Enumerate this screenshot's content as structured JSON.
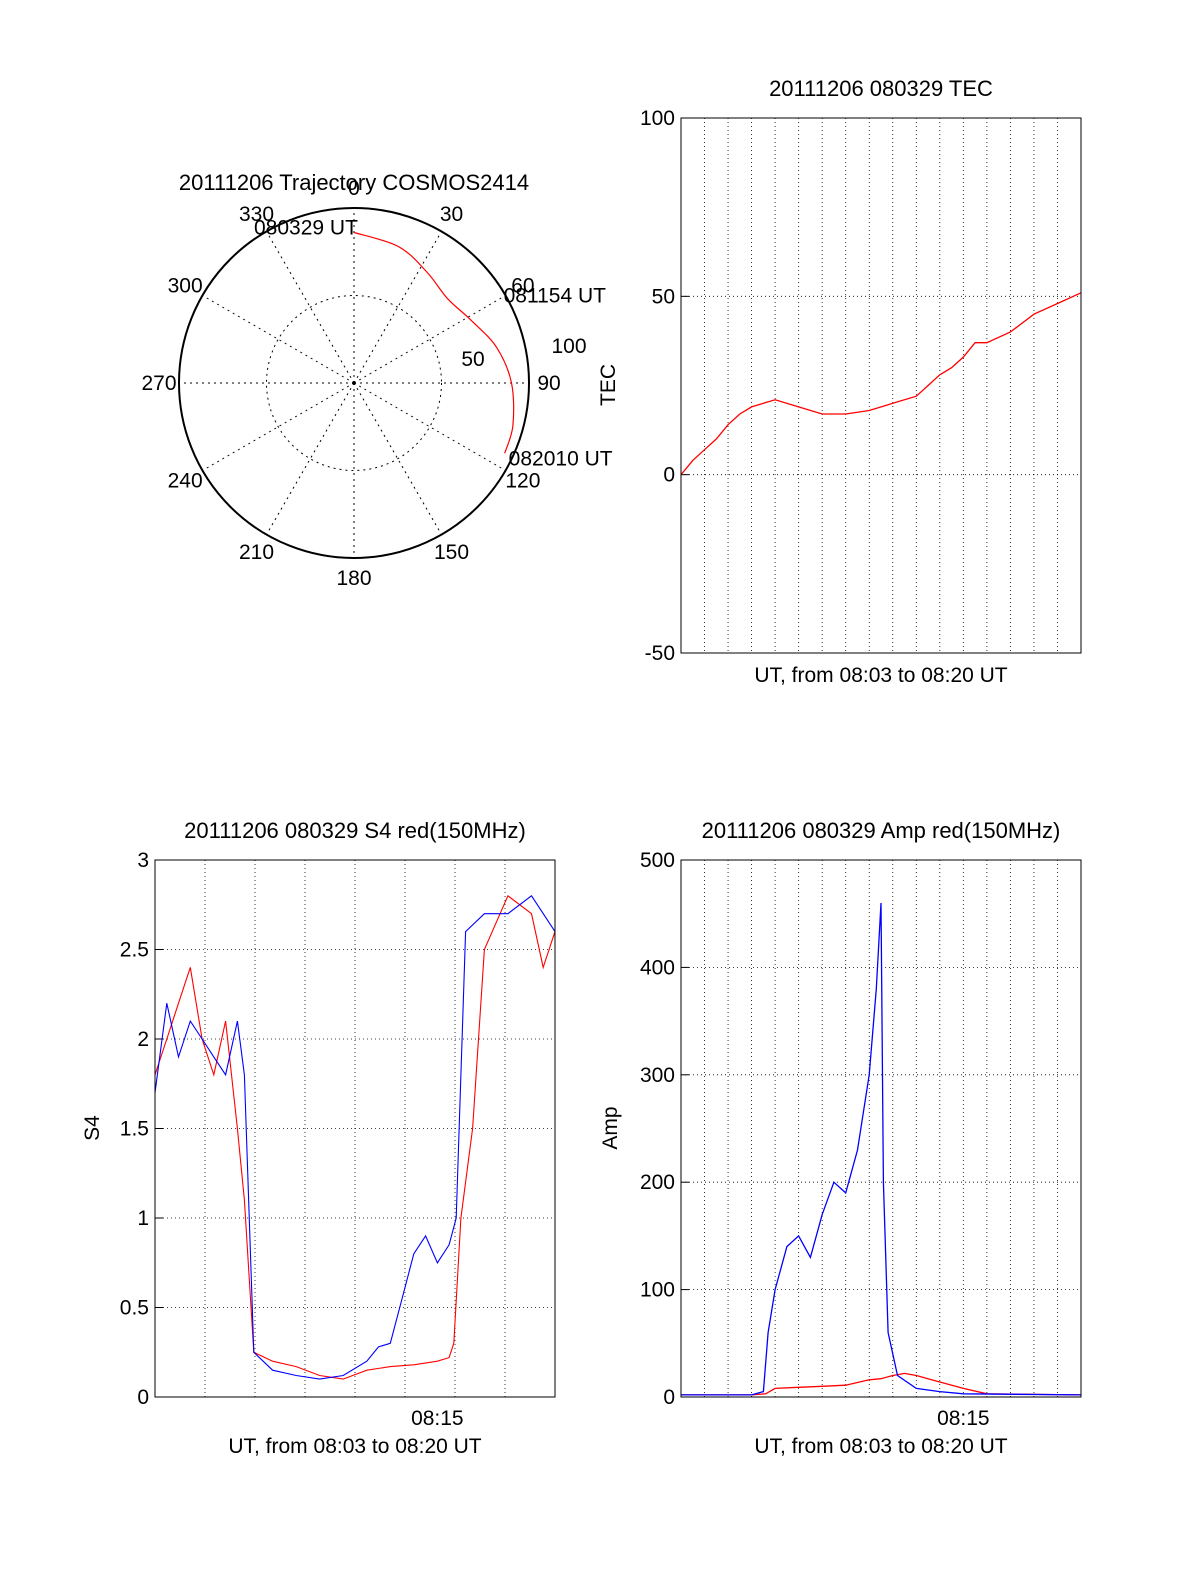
{
  "chart_data": [
    {
      "type": "polar-trajectory",
      "title": "20111206 Trajectory COSMOS2414",
      "azimuth_labels": [
        "0",
        "30",
        "60",
        "90",
        "120",
        "150",
        "180",
        "210",
        "240",
        "270",
        "300",
        "330"
      ],
      "azimuths": [
        0,
        30,
        60,
        90,
        120,
        150,
        180,
        210,
        240,
        270,
        300,
        330
      ],
      "radial_labels": [
        "50",
        "100"
      ],
      "radial_values": [
        50,
        100
      ],
      "r_max": 100,
      "trajectory_color": "#ff0000",
      "trajectory": [
        {
          "azimuth": 0,
          "elevation": 14
        },
        {
          "azimuth": 18,
          "elevation": 18
        },
        {
          "azimuth": 33,
          "elevation": 24
        },
        {
          "azimuth": 48,
          "elevation": 28
        },
        {
          "azimuth": 62,
          "elevation": 24
        },
        {
          "azimuth": 76,
          "elevation": 16
        },
        {
          "azimuth": 90,
          "elevation": 10
        },
        {
          "azimuth": 105,
          "elevation": 6
        },
        {
          "azimuth": 115,
          "elevation": 5
        }
      ],
      "time_labels": [
        {
          "text": "080329 UT",
          "azimuth": 0,
          "elevation": 14
        },
        {
          "text": "081154 UT",
          "azimuth": 48,
          "elevation": 28
        },
        {
          "text": "082010 UT",
          "azimuth": 115,
          "elevation": 5
        }
      ]
    },
    {
      "type": "line",
      "title": "20111206 080329 TEC",
      "xlabel": "UT, from 08:03 to 08:20 UT",
      "ylabel": "TEC",
      "ylim": [
        -50,
        100
      ],
      "yticks": [
        "-50",
        "0",
        "50",
        "100"
      ],
      "xrange_minutes": [
        0,
        17
      ],
      "grid": true,
      "series": [
        {
          "color": "#ff0000",
          "x": [
            0,
            0.5,
            1,
            1.5,
            2,
            2.5,
            3,
            3.5,
            4,
            5,
            6,
            7,
            8,
            9,
            10,
            10.5,
            11,
            11.5,
            12,
            12.5,
            13,
            14,
            15,
            16,
            17
          ],
          "y": [
            0,
            4,
            7,
            10,
            14,
            17,
            19,
            20,
            21,
            19,
            17,
            17,
            18,
            20,
            22,
            25,
            28,
            30,
            33,
            37,
            37,
            40,
            45,
            48,
            51
          ]
        }
      ]
    },
    {
      "type": "line",
      "title": "20111206 080329 S4 red(150MHz)",
      "xlabel": "UT, from 08:03 to 08:20 UT",
      "ylabel": "S4",
      "ylim": [
        0,
        3
      ],
      "yticks": [
        "0",
        "0.5",
        "1",
        "1.5",
        "2",
        "2.5",
        "3"
      ],
      "xtick_labels": [
        {
          "label": "08:15",
          "minute": 12
        }
      ],
      "xrange_minutes": [
        0,
        17
      ],
      "grid": true,
      "series": [
        {
          "color": "#ff0000",
          "x": [
            0,
            0.5,
            1,
            1.5,
            2,
            2.5,
            3,
            3.5,
            3.8,
            4.2,
            5,
            6,
            7,
            8,
            9,
            10,
            11,
            12,
            12.5,
            12.7,
            13,
            13.5,
            14,
            15,
            16,
            16.5,
            17
          ],
          "y": [
            1.8,
            2.0,
            2.2,
            2.4,
            2.0,
            1.8,
            2.1,
            1.5,
            1.1,
            0.25,
            0.2,
            0.17,
            0.12,
            0.1,
            0.15,
            0.17,
            0.18,
            0.2,
            0.22,
            0.3,
            1.0,
            1.5,
            2.5,
            2.8,
            2.7,
            2.4,
            2.6
          ]
        },
        {
          "color": "#0000ff",
          "x": [
            0,
            0.5,
            1,
            1.5,
            2,
            2.5,
            3,
            3.5,
            3.8,
            4.2,
            5,
            6,
            7,
            8,
            9,
            9.5,
            10,
            10.5,
            11,
            11.5,
            12,
            12.5,
            12.8,
            13.2,
            14,
            15,
            16,
            17
          ],
          "y": [
            1.7,
            2.2,
            1.9,
            2.1,
            2.0,
            1.9,
            1.8,
            2.1,
            1.8,
            0.25,
            0.15,
            0.12,
            0.1,
            0.12,
            0.2,
            0.28,
            0.3,
            0.55,
            0.8,
            0.9,
            0.75,
            0.85,
            1.0,
            2.6,
            2.7,
            2.7,
            2.8,
            2.6
          ]
        }
      ]
    },
    {
      "type": "line",
      "title": "20111206 080329 Amp red(150MHz)",
      "xlabel": "UT, from 08:03 to 08:20 UT",
      "ylabel": "Amp",
      "ylim": [
        0,
        500
      ],
      "yticks": [
        "0",
        "100",
        "200",
        "300",
        "400",
        "500"
      ],
      "xtick_labels": [
        {
          "label": "08:15",
          "minute": 12
        }
      ],
      "xrange_minutes": [
        0,
        17
      ],
      "grid": true,
      "series": [
        {
          "color": "#ff0000",
          "x": [
            0,
            3,
            3.6,
            4,
            5,
            6,
            7,
            8,
            8.5,
            9,
            9.5,
            10,
            11,
            12,
            13,
            17
          ],
          "y": [
            2,
            2,
            3,
            8,
            9,
            10,
            11,
            16,
            17,
            20,
            22,
            20,
            14,
            8,
            3,
            2
          ]
        },
        {
          "color": "#0000ff",
          "x": [
            0,
            3,
            3.5,
            3.7,
            4,
            4.5,
            5,
            5.5,
            6,
            6.5,
            7,
            7.5,
            8,
            8.3,
            8.5,
            8.6,
            8.8,
            9.2,
            10,
            11,
            12,
            17
          ],
          "y": [
            2,
            2,
            5,
            60,
            100,
            140,
            150,
            130,
            170,
            200,
            190,
            230,
            300,
            380,
            460,
            200,
            60,
            20,
            8,
            5,
            3,
            2
          ]
        }
      ]
    }
  ]
}
